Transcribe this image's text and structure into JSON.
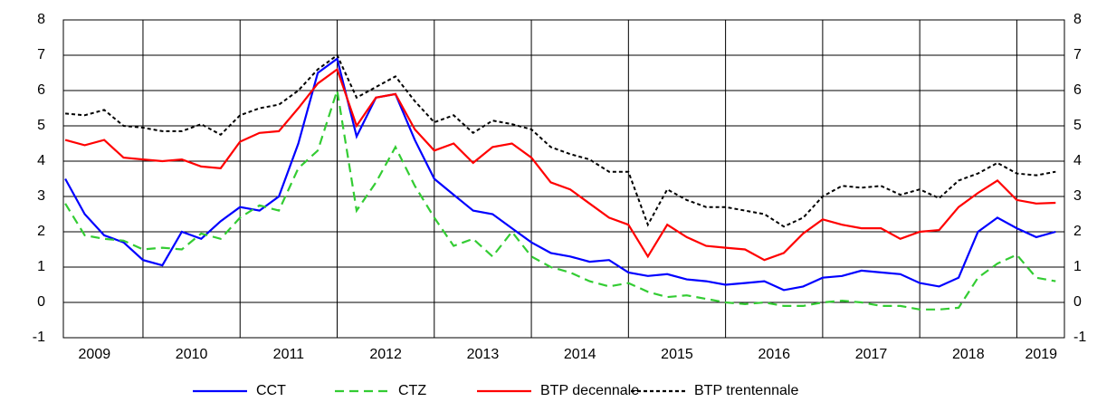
{
  "chart_data": {
    "type": "line",
    "x": [
      2009.2,
      2009.4,
      2009.6,
      2009.8,
      2010.0,
      2010.2,
      2010.4,
      2010.6,
      2010.8,
      2011.0,
      2011.2,
      2011.4,
      2011.6,
      2011.8,
      2012.0,
      2012.2,
      2012.4,
      2012.6,
      2012.8,
      2013.0,
      2013.2,
      2013.4,
      2013.6,
      2013.8,
      2014.0,
      2014.2,
      2014.4,
      2014.6,
      2014.8,
      2015.0,
      2015.2,
      2015.4,
      2015.6,
      2015.8,
      2016.0,
      2016.2,
      2016.4,
      2016.6,
      2016.8,
      2017.0,
      2017.2,
      2017.4,
      2017.6,
      2017.8,
      2018.0,
      2018.2,
      2018.4,
      2018.6,
      2018.8,
      2019.0,
      2019.2,
      2019.4
    ],
    "series": [
      {
        "name": "CCT",
        "color": "#0000ff",
        "style": "solid",
        "values": [
          3.5,
          2.5,
          1.9,
          1.7,
          1.2,
          1.05,
          2.0,
          1.8,
          2.3,
          2.7,
          2.6,
          3.0,
          4.5,
          6.5,
          6.9,
          4.7,
          5.8,
          5.9,
          4.6,
          3.5,
          3.05,
          2.6,
          2.5,
          2.1,
          1.7,
          1.4,
          1.3,
          1.15,
          1.2,
          0.85,
          0.75,
          0.8,
          0.65,
          0.6,
          0.5,
          0.55,
          0.6,
          0.35,
          0.45,
          0.7,
          0.75,
          0.9,
          0.85,
          0.8,
          0.55,
          0.45,
          0.7,
          2.0,
          2.4,
          2.1,
          1.85,
          2.0
        ]
      },
      {
        "name": "CTZ",
        "color": "#33cc33",
        "style": "dashed",
        "values": [
          2.8,
          1.9,
          1.8,
          1.75,
          1.5,
          1.55,
          1.5,
          1.95,
          1.8,
          2.4,
          2.75,
          2.6,
          3.8,
          4.3,
          6.0,
          2.6,
          3.4,
          4.4,
          3.3,
          2.4,
          1.6,
          1.8,
          1.3,
          2.0,
          1.3,
          1.0,
          0.85,
          0.6,
          0.45,
          0.55,
          0.3,
          0.15,
          0.2,
          0.1,
          0.0,
          -0.05,
          0.0,
          -0.1,
          -0.1,
          0.0,
          0.05,
          0.0,
          -0.1,
          -0.1,
          -0.2,
          -0.2,
          -0.15,
          0.7,
          1.1,
          1.35,
          0.7,
          0.6
        ]
      },
      {
        "name": "BTP decennale",
        "color": "#ff0000",
        "style": "solid",
        "values": [
          4.6,
          4.45,
          4.6,
          4.1,
          4.05,
          4.0,
          4.05,
          3.85,
          3.8,
          4.55,
          4.8,
          4.85,
          5.5,
          6.2,
          6.6,
          5.0,
          5.8,
          5.9,
          4.9,
          4.3,
          4.5,
          3.95,
          4.4,
          4.5,
          4.1,
          3.4,
          3.2,
          2.8,
          2.4,
          2.2,
          1.3,
          2.2,
          1.85,
          1.6,
          1.55,
          1.5,
          1.2,
          1.4,
          1.95,
          2.35,
          2.2,
          2.1,
          2.1,
          1.8,
          2.0,
          2.05,
          2.7,
          3.1,
          3.45,
          2.9,
          2.8,
          2.82
        ]
      },
      {
        "name": "BTP trentennale",
        "color": "#000000",
        "style": "dotted",
        "values": [
          5.35,
          5.3,
          5.45,
          5.0,
          4.95,
          4.85,
          4.85,
          5.05,
          4.75,
          5.3,
          5.5,
          5.6,
          6.0,
          6.6,
          7.0,
          5.8,
          6.1,
          6.4,
          5.7,
          5.1,
          5.3,
          4.8,
          5.15,
          5.05,
          4.9,
          4.4,
          4.2,
          4.05,
          3.7,
          3.7,
          2.2,
          3.2,
          2.9,
          2.7,
          2.7,
          2.6,
          2.5,
          2.15,
          2.4,
          3.0,
          3.3,
          3.25,
          3.3,
          3.05,
          3.2,
          2.95,
          3.45,
          3.65,
          3.95,
          3.65,
          3.6,
          3.7
        ]
      }
    ],
    "xlim": [
      2009.18,
      2019.49
    ],
    "xticks": [
      {
        "value": 2009.5,
        "label": "2009"
      },
      {
        "value": 2010.5,
        "label": "2010"
      },
      {
        "value": 2011.5,
        "label": "2011"
      },
      {
        "value": 2012.5,
        "label": "2012"
      },
      {
        "value": 2013.5,
        "label": "2013"
      },
      {
        "value": 2014.5,
        "label": "2014"
      },
      {
        "value": 2015.5,
        "label": "2015"
      },
      {
        "value": 2016.5,
        "label": "2016"
      },
      {
        "value": 2017.5,
        "label": "2017"
      },
      {
        "value": 2018.5,
        "label": "2018"
      },
      {
        "value": 2019.25,
        "label": "2019"
      }
    ],
    "xgrid": [
      2010,
      2011,
      2012,
      2013,
      2014,
      2015,
      2016,
      2017,
      2018,
      2019
    ],
    "ylim": [
      -1,
      8
    ],
    "yticks": [
      -1,
      0,
      1,
      2,
      3,
      4,
      5,
      6,
      7,
      8
    ],
    "y2lim": [
      -1,
      8
    ],
    "y2ticks": [
      -1,
      0,
      1,
      2,
      3,
      4,
      5,
      6,
      7,
      8
    ],
    "grid": true,
    "legend": "bottom"
  }
}
